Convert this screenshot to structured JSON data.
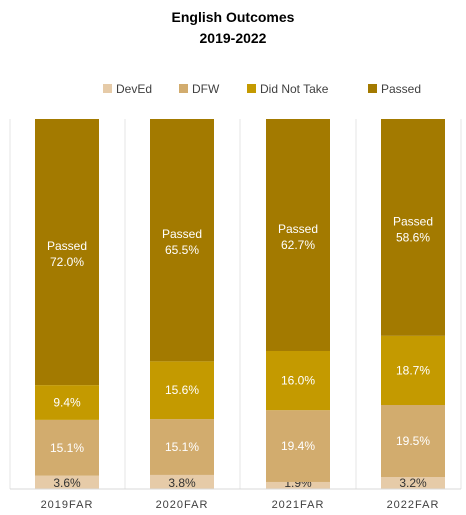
{
  "chart_data": {
    "type": "bar",
    "stacked": "100%",
    "title": "English Outcomes",
    "subtitle": "2019-2022",
    "categories": [
      "2019FAR",
      "2020FAR",
      "2021FAR",
      "2022FAR"
    ],
    "series": [
      {
        "name": "DevEd",
        "color": "#e6cba8",
        "values": [
          3.6,
          3.8,
          1.9,
          3.2
        ],
        "labels": [
          "3.6%",
          "3.8%",
          "1.9%",
          "3.2%"
        ]
      },
      {
        "name": "DFW",
        "color": "#d2ac6e",
        "values": [
          15.1,
          15.1,
          19.4,
          19.5
        ],
        "labels": [
          "15.1%",
          "15.1%",
          "19.4%",
          "19.5%"
        ]
      },
      {
        "name": "Did Not Take",
        "color": "#c49a00",
        "values": [
          9.4,
          15.6,
          16.0,
          18.7
        ],
        "labels": [
          "9.4%",
          "15.6%",
          "16.0%",
          "18.7%"
        ]
      },
      {
        "name": "Passed",
        "color": "#a37a00",
        "values": [
          72.0,
          65.5,
          62.7,
          58.6
        ],
        "labels": [
          "72.0%",
          "65.5%",
          "62.7%",
          "58.6%"
        ],
        "label_prefix": "Passed"
      }
    ],
    "legend_position": "top",
    "grid": false,
    "ylim": [
      0,
      100
    ]
  }
}
